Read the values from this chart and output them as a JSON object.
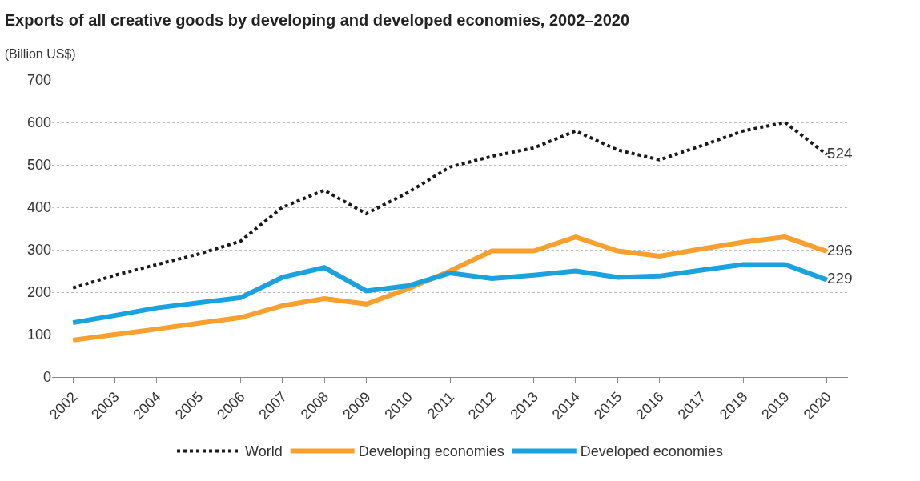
{
  "chart_data": {
    "type": "line",
    "title": "Exports of all creative goods by developing and developed economies, 2002–2020",
    "subtitle": "(Billion US$)",
    "categories": [
      "2002",
      "2003",
      "2004",
      "2005",
      "2006",
      "2007",
      "2008",
      "2009",
      "2010",
      "2011",
      "2012",
      "2013",
      "2014",
      "2015",
      "2016",
      "2017",
      "2018",
      "2019",
      "2020"
    ],
    "series": [
      {
        "name": "World",
        "color": "#1a1a1a",
        "line_style": "dotted",
        "values": [
          210,
          240,
          265,
          290,
          320,
          400,
          440,
          385,
          435,
          495,
          520,
          540,
          580,
          535,
          512,
          545,
          580,
          600,
          524
        ],
        "value_labels": [
          null,
          null,
          null,
          null,
          null,
          null,
          null,
          null,
          null,
          null,
          null,
          null,
          null,
          null,
          null,
          null,
          null,
          null,
          "524"
        ]
      },
      {
        "name": "Developing economies",
        "color": "#f7a030",
        "line_style": "solid",
        "values": [
          87,
          100,
          113,
          127,
          140,
          168,
          185,
          172,
          208,
          250,
          297,
          297,
          330,
          297,
          285,
          302,
          318,
          330,
          296
        ],
        "value_labels": [
          null,
          null,
          null,
          null,
          null,
          null,
          null,
          null,
          null,
          null,
          null,
          null,
          null,
          null,
          null,
          null,
          null,
          null,
          "296"
        ]
      },
      {
        "name": "Developed economies",
        "color": "#1ba1db",
        "line_style": "solid",
        "values": [
          128,
          145,
          163,
          175,
          187,
          235,
          258,
          203,
          215,
          245,
          232,
          240,
          250,
          235,
          238,
          252,
          265,
          265,
          229
        ],
        "value_labels": [
          null,
          null,
          null,
          null,
          null,
          null,
          null,
          null,
          null,
          null,
          null,
          null,
          null,
          null,
          null,
          null,
          null,
          null,
          "229"
        ]
      }
    ],
    "ylim": [
      0,
      700
    ],
    "yticks": [
      0,
      100,
      200,
      300,
      400,
      500,
      600,
      700
    ],
    "grid": "y",
    "legend": "bottom",
    "marker": "none"
  }
}
